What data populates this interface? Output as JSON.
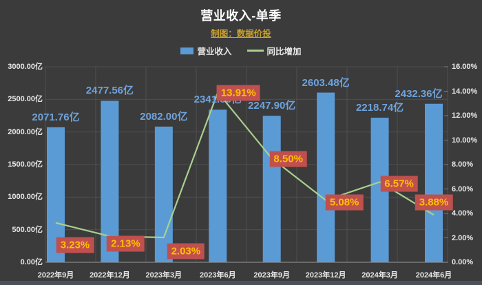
{
  "header": {
    "title": "营业收入-单季",
    "subtitle": "制图：数据价投"
  },
  "legend": [
    {
      "label": "营业收入",
      "swatch": "bar-swatch"
    },
    {
      "label": "同比增加",
      "swatch": "line-swatch"
    }
  ],
  "colors": {
    "background": "#3b3b3b",
    "bar": "#5b9bd5",
    "bar_label": "#6ea3dc",
    "line": "#a9d08e",
    "callout_bg": "#c0504d",
    "callout_text": "#ffc000",
    "axis_text": "#e8e8e8",
    "gridline": "#4f4f4f",
    "axis_line": "#7a7a7a",
    "title": "#ffffff",
    "subtitle": "#c9a22b",
    "footer": "#4a515b"
  },
  "chart_data": {
    "type": "bar+line combo",
    "title": "营业收入-单季",
    "subtitle": "制图：数据价投",
    "categories": [
      "2022年9月",
      "2022年12月",
      "2023年3月",
      "2023年6月",
      "2023年9月",
      "2023年12月",
      "2024年3月",
      "2024年6月"
    ],
    "series": [
      {
        "name": "营业收入",
        "type": "bar",
        "axis": "left",
        "unit": "亿",
        "values": [
          2071.76,
          2477.56,
          2082.0,
          2341.56,
          2247.9,
          2603.48,
          2218.74,
          2432.36
        ],
        "labels": [
          "2071.76亿",
          "2477.56亿",
          "2082.00亿",
          "2341.56亿",
          "2247.90亿",
          "2603.48亿",
          "2218.74亿",
          "2432.36亿"
        ]
      },
      {
        "name": "同比增加",
        "type": "line",
        "axis": "right",
        "unit": "%",
        "values": [
          3.23,
          2.13,
          2.03,
          13.91,
          8.5,
          5.08,
          6.57,
          3.88
        ],
        "labels": [
          "3.23%",
          "2.13%",
          "2.03%",
          "13.91%",
          "8.50%",
          "5.08%",
          "6.57%",
          "3.88%"
        ]
      }
    ],
    "left_axis": {
      "min": 0,
      "max": 3000,
      "ticks": [
        "3000.00亿",
        "2500.00亿",
        "2000.00亿",
        "1500.00亿",
        "1000.00亿",
        "500.00亿",
        "0.00亿"
      ]
    },
    "right_axis": {
      "min": 0,
      "max": 16,
      "ticks": [
        "16.00%",
        "14.00%",
        "12.00%",
        "10.00%",
        "8.00%",
        "6.00%",
        "4.00%",
        "2.00%",
        "0.00%"
      ]
    },
    "grid": true,
    "legend_position": "top"
  }
}
